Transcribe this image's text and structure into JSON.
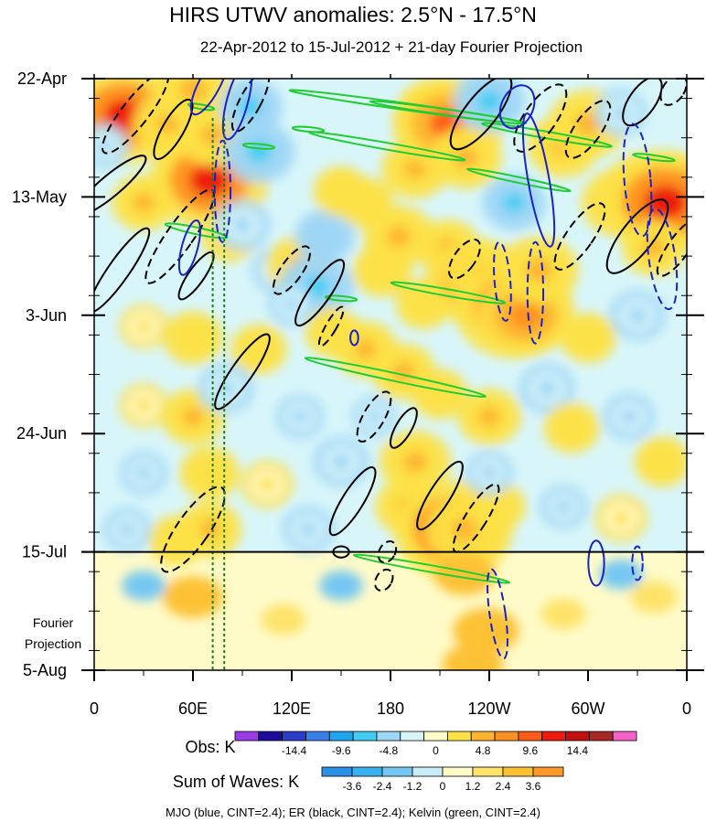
{
  "chart_data": {
    "type": "heatmap",
    "title": "HIRS UTWV anomalies: 2.5°N - 17.5°N",
    "subtitle": "22-Apr-2012 to 15-Jul-2012 + 21-day Fourier Projection",
    "y_axis": {
      "ticks": [
        {
          "label": "22-Apr",
          "day": 0
        },
        {
          "label": "13-May",
          "day": 21
        },
        {
          "label": "3-Jun",
          "day": 42
        },
        {
          "label": "24-Jun",
          "day": 63
        },
        {
          "label": "15-Jul",
          "day": 84
        },
        {
          "label": "5-Aug",
          "day": 105
        }
      ],
      "range_days": [
        0,
        105
      ],
      "fourier_label_line1": "Fourier",
      "fourier_label_line2": "Projection",
      "projection_start_day": 84
    },
    "x_axis": {
      "ticks": [
        {
          "label": "0",
          "lon": 0
        },
        {
          "label": "60E",
          "lon": 60
        },
        {
          "label": "120E",
          "lon": 120
        },
        {
          "label": "180",
          "lon": 180
        },
        {
          "label": "120W",
          "lon": 240
        },
        {
          "label": "60W",
          "lon": 300
        },
        {
          "label": "0",
          "lon": 360
        }
      ],
      "range_lon": [
        0,
        360
      ]
    },
    "reference_lines_lon": [
      72,
      79
    ],
    "obs_colorbar": {
      "label": "Obs: K",
      "colors": [
        "#9a3ce6",
        "#1c0d9c",
        "#2a3cc8",
        "#3a7ee8",
        "#1fa4f0",
        "#41cdf2",
        "#9ed6f5",
        "#d8f6fa",
        "#fffbc9",
        "#fde146",
        "#fdb530",
        "#fe9022",
        "#fe5c16",
        "#ee1c0e",
        "#c2100e",
        "#a52b24",
        "#f562c8"
      ],
      "labels": [
        {
          "text": "-14.4",
          "value": -14.4
        },
        {
          "text": "-9.6",
          "value": -9.6
        },
        {
          "text": "-4.8",
          "value": -4.8
        },
        {
          "text": "0",
          "value": 0
        },
        {
          "text": "4.8",
          "value": 4.8
        },
        {
          "text": "9.6",
          "value": 9.6
        },
        {
          "text": "14.4",
          "value": 14.4
        }
      ]
    },
    "waves_colorbar": {
      "label": "Sum of Waves: K",
      "colors": [
        "#2b8fe6",
        "#3ab1ef",
        "#74c7f2",
        "#c9edf6",
        "#fffbc9",
        "#fde36b",
        "#fdc134",
        "#fe9828"
      ],
      "labels": [
        {
          "text": "-3.6",
          "value": -3.6
        },
        {
          "text": "-2.4",
          "value": -2.4
        },
        {
          "text": "-1.2",
          "value": -1.2
        },
        {
          "text": "0",
          "value": 0
        },
        {
          "text": "1.2",
          "value": 1.2
        },
        {
          "text": "2.4",
          "value": 2.4
        },
        {
          "text": "3.6",
          "value": 3.6
        }
      ]
    },
    "legend_note": "MJO (blue, CINT=2.4); ER (black, CINT=2.4); Kelvin (green, CINT=2.4)",
    "contour_colors": {
      "mjo": "#1a22c8",
      "er": "#000000",
      "kelvin": "#22cc33"
    },
    "blobs": [
      {
        "lon": 10,
        "day": 7,
        "value": 5.0
      },
      {
        "lon": 18,
        "day": 6.5,
        "value": 12.0
      },
      {
        "lon": 6,
        "day": 12,
        "value": -3.0
      },
      {
        "lon": 30,
        "day": 22,
        "value": 5.0
      },
      {
        "lon": 45,
        "day": 8,
        "value": 6.0
      },
      {
        "lon": 60,
        "day": 2,
        "value": 7.0
      },
      {
        "lon": 68,
        "day": 16,
        "value": 9.0
      },
      {
        "lon": 70,
        "day": 18,
        "value": 12.0
      },
      {
        "lon": 72,
        "day": 10,
        "value": 6.0
      },
      {
        "lon": 82,
        "day": 28,
        "value": 4.0
      },
      {
        "lon": 90,
        "day": 26,
        "value": -4.0
      },
      {
        "lon": 95,
        "day": 5,
        "value": -5.0
      },
      {
        "lon": 100,
        "day": 13,
        "value": -6.0
      },
      {
        "lon": 110,
        "day": 34,
        "value": -3.0
      },
      {
        "lon": 124,
        "day": 33,
        "value": 5.0
      },
      {
        "lon": 135,
        "day": 37,
        "value": -6.5
      },
      {
        "lon": 140,
        "day": 28,
        "value": -4.5
      },
      {
        "lon": 150,
        "day": 20,
        "value": 4.0
      },
      {
        "lon": 165,
        "day": 22,
        "value": 4.0
      },
      {
        "lon": 175,
        "day": 34,
        "value": 4.5
      },
      {
        "lon": 185,
        "day": 28,
        "value": 6.0
      },
      {
        "lon": 200,
        "day": 40,
        "value": 4.0
      },
      {
        "lon": 215,
        "day": 30,
        "value": 5.0
      },
      {
        "lon": 195,
        "day": 16,
        "value": 5.5
      },
      {
        "lon": 208,
        "day": 6,
        "value": 7.0
      },
      {
        "lon": 215,
        "day": 8,
        "value": 11.0
      },
      {
        "lon": 226,
        "day": 14,
        "value": 6.0
      },
      {
        "lon": 232,
        "day": 36,
        "value": 10.0
      },
      {
        "lon": 238,
        "day": 35,
        "value": 7.0
      },
      {
        "lon": 255,
        "day": 41,
        "value": 12.0
      },
      {
        "lon": 262,
        "day": 42,
        "value": 9.0
      },
      {
        "lon": 270,
        "day": 34,
        "value": 7.0
      },
      {
        "lon": 255,
        "day": 22,
        "value": -5.0
      },
      {
        "lon": 240,
        "day": 4,
        "value": -6.0
      },
      {
        "lon": 285,
        "day": 12,
        "value": 6.0
      },
      {
        "lon": 300,
        "day": 8,
        "value": 7.0
      },
      {
        "lon": 320,
        "day": 6,
        "value": -3.5
      },
      {
        "lon": 320,
        "day": 22,
        "value": 7.0
      },
      {
        "lon": 340,
        "day": 21,
        "value": 11.0
      },
      {
        "lon": 347,
        "day": 22,
        "value": 13.0
      },
      {
        "lon": 340,
        "day": 30,
        "value": 5.0
      },
      {
        "lon": 330,
        "day": 42,
        "value": -4.0
      },
      {
        "lon": 300,
        "day": 46,
        "value": 4.0
      },
      {
        "lon": 60,
        "day": 46,
        "value": 4.5
      },
      {
        "lon": 30,
        "day": 44,
        "value": 3.0
      },
      {
        "lon": 100,
        "day": 48,
        "value": 4.0
      },
      {
        "lon": 120,
        "day": 40,
        "value": -3.0
      },
      {
        "lon": 145,
        "day": 45,
        "value": 4.0
      },
      {
        "lon": 165,
        "day": 48,
        "value": 5.0
      },
      {
        "lon": 188,
        "day": 52,
        "value": 5.0
      },
      {
        "lon": 30,
        "day": 58,
        "value": 3.0
      },
      {
        "lon": 60,
        "day": 60,
        "value": 5.0
      },
      {
        "lon": 80,
        "day": 55,
        "value": -4.0
      },
      {
        "lon": 125,
        "day": 60,
        "value": -3.0
      },
      {
        "lon": 170,
        "day": 60,
        "value": -2.5
      },
      {
        "lon": 210,
        "day": 56,
        "value": 4.0
      },
      {
        "lon": 240,
        "day": 60,
        "value": 5.0
      },
      {
        "lon": 275,
        "day": 55,
        "value": -4.0
      },
      {
        "lon": 290,
        "day": 62,
        "value": 4.0
      },
      {
        "lon": 325,
        "day": 60,
        "value": -3.5
      },
      {
        "lon": 345,
        "day": 68,
        "value": 4.0
      },
      {
        "lon": 30,
        "day": 70,
        "value": -3.0
      },
      {
        "lon": 70,
        "day": 70,
        "value": 4.5
      },
      {
        "lon": 105,
        "day": 72,
        "value": 3.5
      },
      {
        "lon": 150,
        "day": 68,
        "value": -4.0
      },
      {
        "lon": 195,
        "day": 68,
        "value": 6.0
      },
      {
        "lon": 190,
        "day": 76,
        "value": 5.0
      },
      {
        "lon": 215,
        "day": 82,
        "value": 8.0
      },
      {
        "lon": 218,
        "day": 80,
        "value": 12.0
      },
      {
        "lon": 225,
        "day": 80,
        "value": 7.0
      },
      {
        "lon": 245,
        "day": 76,
        "value": 4.0
      },
      {
        "lon": 285,
        "day": 76,
        "value": -3.0
      },
      {
        "lon": 320,
        "day": 78,
        "value": 3.5
      },
      {
        "lon": 70,
        "day": 80,
        "value": 5.0
      },
      {
        "lon": 50,
        "day": 82,
        "value": 4.0
      },
      {
        "lon": 20,
        "day": 80,
        "value": -3.0
      },
      {
        "lon": 130,
        "day": 80,
        "value": -3.5
      },
      {
        "lon": 240,
        "day": 70,
        "value": -3.0
      }
    ],
    "projection_blobs": [
      {
        "lon": 60,
        "day": 92,
        "value": 2.6
      },
      {
        "lon": 115,
        "day": 96,
        "value": 1.4
      },
      {
        "lon": 225,
        "day": 88,
        "value": 2.6
      },
      {
        "lon": 238,
        "day": 98,
        "value": 3.0
      },
      {
        "lon": 230,
        "day": 104,
        "value": 2.6
      },
      {
        "lon": 285,
        "day": 95,
        "value": 1.4
      },
      {
        "lon": 340,
        "day": 92,
        "value": 1.6
      },
      {
        "lon": 30,
        "day": 90,
        "value": -1.3
      },
      {
        "lon": 150,
        "day": 90,
        "value": -1.3
      },
      {
        "lon": 320,
        "day": 88,
        "value": -1.3
      }
    ],
    "mjo_contours": [
      {
        "lon": 70,
        "day": 1,
        "dlon": 4,
        "dday": 6,
        "tilt": 28,
        "dashed": false
      },
      {
        "lon": 87,
        "day": 4,
        "dlon": 4,
        "dday": 7,
        "tilt": 15,
        "dashed": false
      },
      {
        "lon": 78,
        "day": 20,
        "dlon": 3,
        "dday": 9,
        "tilt": 0,
        "dashed": true
      },
      {
        "lon": 58,
        "day": 30,
        "dlon": 3,
        "dday": 5,
        "tilt": 15,
        "dashed": false
      },
      {
        "lon": 158,
        "day": 46,
        "dlon": 1.5,
        "dday": 1.3,
        "tilt": 0,
        "dashed": false
      },
      {
        "lon": 257,
        "day": 5,
        "dlon": 6,
        "dday": 4,
        "tilt": 25,
        "dashed": false
      },
      {
        "lon": 270,
        "day": 18,
        "dlon": 4,
        "dday": 12,
        "tilt": -10,
        "dashed": false
      },
      {
        "lon": 248,
        "day": 36,
        "dlon": 3,
        "dday": 7,
        "tilt": -5,
        "dashed": true
      },
      {
        "lon": 268,
        "day": 38,
        "dlon": 3,
        "dday": 9,
        "tilt": 0,
        "dashed": true
      },
      {
        "lon": 330,
        "day": 18,
        "dlon": 5,
        "dday": 10,
        "tilt": -5,
        "dashed": true
      },
      {
        "lon": 345,
        "day": 32,
        "dlon": 5,
        "dday": 9,
        "tilt": -8,
        "dashed": true
      },
      {
        "lon": 305,
        "day": 86,
        "dlon": 3,
        "dday": 4,
        "tilt": 0,
        "dashed": false
      },
      {
        "lon": 330,
        "day": 86,
        "dlon": 2,
        "dday": 3,
        "tilt": 0,
        "dashed": true
      },
      {
        "lon": 245,
        "day": 95,
        "dlon": 3,
        "dday": 8,
        "tilt": -8,
        "dashed": true
      }
    ],
    "er_contours": [
      {
        "lon": 25,
        "day": 6,
        "dlon": 5,
        "dday": 9,
        "tilt": 38,
        "dashed": true
      },
      {
        "lon": 10,
        "day": 19,
        "dlon": 4,
        "dday": 8,
        "tilt": 50,
        "dashed": false
      },
      {
        "lon": 48,
        "day": 9,
        "dlon": 4,
        "dday": 6,
        "tilt": 30,
        "dashed": false
      },
      {
        "lon": 95,
        "day": 4,
        "dlon": 4,
        "dday": 6,
        "tilt": 28,
        "dashed": true
      },
      {
        "lon": 52,
        "day": 28,
        "dlon": 5,
        "dday": 10,
        "tilt": 35,
        "dashed": true
      },
      {
        "lon": 15,
        "day": 34,
        "dlon": 4,
        "dday": 9,
        "tilt": 35,
        "dashed": false
      },
      {
        "lon": 62,
        "day": 35,
        "dlon": 3,
        "dday": 5,
        "tilt": 35,
        "dashed": false
      },
      {
        "lon": 120,
        "day": 34,
        "dlon": 4,
        "dday": 5,
        "tilt": 35,
        "dashed": true
      },
      {
        "lon": 137,
        "day": 38,
        "dlon": 4,
        "dday": 7,
        "tilt": 35,
        "dashed": false
      },
      {
        "lon": 144,
        "day": 44,
        "dlon": 2,
        "dday": 4,
        "tilt": 30,
        "dashed": true
      },
      {
        "lon": 90,
        "day": 52,
        "dlon": 4,
        "dday": 8,
        "tilt": 35,
        "dashed": false
      },
      {
        "lon": 170,
        "day": 60,
        "dlon": 4,
        "dday": 5,
        "tilt": 30,
        "dashed": true
      },
      {
        "lon": 188,
        "day": 62,
        "dlon": 3,
        "dday": 4,
        "tilt": 30,
        "dashed": false
      },
      {
        "lon": 235,
        "day": 6,
        "dlon": 6,
        "dday": 8,
        "tilt": 38,
        "dashed": false
      },
      {
        "lon": 271,
        "day": 7,
        "dlon": 6,
        "dday": 7,
        "tilt": 35,
        "dashed": true
      },
      {
        "lon": 300,
        "day": 9,
        "dlon": 5,
        "dday": 6,
        "tilt": 35,
        "dashed": true
      },
      {
        "lon": 333,
        "day": 4,
        "dlon": 5,
        "dday": 5,
        "tilt": 35,
        "dashed": false
      },
      {
        "lon": 352,
        "day": 2,
        "dlon": 4,
        "dday": 3,
        "tilt": 35,
        "dashed": true
      },
      {
        "lon": 330,
        "day": 28,
        "dlon": 6,
        "dday": 8,
        "tilt": 38,
        "dashed": false
      },
      {
        "lon": 355,
        "day": 30,
        "dlon": 4,
        "dday": 6,
        "tilt": 35,
        "dashed": true
      },
      {
        "lon": 295,
        "day": 28,
        "dlon": 5,
        "dday": 7,
        "tilt": 35,
        "dashed": true
      },
      {
        "lon": 225,
        "day": 32,
        "dlon": 4,
        "dday": 4,
        "tilt": 35,
        "dashed": true
      },
      {
        "lon": 60,
        "day": 80,
        "dlon": 6,
        "dday": 9,
        "tilt": 35,
        "dashed": true
      },
      {
        "lon": 157,
        "day": 75,
        "dlon": 4,
        "dday": 7,
        "tilt": 32,
        "dashed": false
      },
      {
        "lon": 210,
        "day": 74,
        "dlon": 4,
        "dday": 7,
        "tilt": 32,
        "dashed": false
      },
      {
        "lon": 232,
        "day": 78,
        "dlon": 4,
        "dday": 7,
        "tilt": 32,
        "dashed": true
      },
      {
        "lon": 178,
        "day": 84,
        "dlon": 3,
        "dday": 2,
        "tilt": 30,
        "dashed": true
      },
      {
        "lon": 176,
        "day": 89,
        "dlon": 3,
        "dday": 2,
        "tilt": 30,
        "dashed": true
      },
      {
        "lon": 150,
        "day": 84,
        "dlon": 3,
        "dday": 1,
        "tilt": 0,
        "dashed": false
      }
    ],
    "kelvin_contours": [
      {
        "lon": 65,
        "day": 5,
        "dlon": 5,
        "dday": 0.4,
        "tilt": 10,
        "dashed": false
      },
      {
        "lon": 62,
        "day": 27,
        "dlon": 12,
        "dday": 0.6,
        "tilt": 12,
        "dashed": false
      },
      {
        "lon": 190,
        "day": 5,
        "dlon": 45,
        "dday": 0.6,
        "tilt": 8,
        "dashed": false
      },
      {
        "lon": 215,
        "day": 6,
        "dlon": 30,
        "dday": 0.5,
        "tilt": 8,
        "dashed": false
      },
      {
        "lon": 178,
        "day": 12,
        "dlon": 30,
        "dday": 0.6,
        "tilt": 10,
        "dashed": false
      },
      {
        "lon": 275,
        "day": 10,
        "dlon": 25,
        "dday": 0.6,
        "tilt": 10,
        "dashed": false
      },
      {
        "lon": 258,
        "day": 18,
        "dlon": 20,
        "dday": 0.5,
        "tilt": 12,
        "dashed": false
      },
      {
        "lon": 340,
        "day": 14,
        "dlon": 8,
        "dday": 0.4,
        "tilt": 8,
        "dashed": false
      },
      {
        "lon": 215,
        "day": 38,
        "dlon": 22,
        "dday": 0.6,
        "tilt": 10,
        "dashed": false
      },
      {
        "lon": 183,
        "day": 53,
        "dlon": 35,
        "dday": 0.7,
        "tilt": 12,
        "dashed": false
      },
      {
        "lon": 205,
        "day": 87,
        "dlon": 30,
        "dday": 0.6,
        "tilt": 10,
        "dashed": false
      },
      {
        "lon": 150,
        "day": 39,
        "dlon": 6,
        "dday": 0.4,
        "tilt": 5,
        "dashed": false
      },
      {
        "lon": 100,
        "day": 12,
        "dlon": 6,
        "dday": 0.4,
        "tilt": 5,
        "dashed": false
      },
      {
        "lon": 130,
        "day": 9,
        "dlon": 6,
        "dday": 0.4,
        "tilt": 5,
        "dashed": false
      }
    ]
  }
}
